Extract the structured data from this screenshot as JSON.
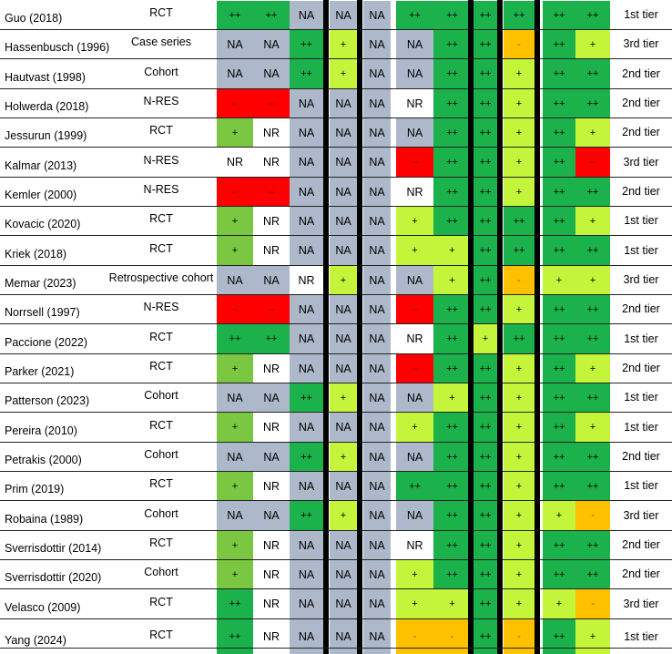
{
  "legend": {
    "++": "#1bb14b",
    "+": "#c5f53a",
    "+ light": "#7cc742",
    "-": "#ffc000",
    "--": "#ff0000",
    "NA": "#adb9ca",
    "NR": "#ffffff"
  },
  "rows": [
    {
      "study": "Guo (2018)",
      "design": "RCT",
      "ratings": [
        "++",
        "++",
        "NA",
        "NA",
        "NA",
        "++",
        "++",
        "++",
        "++",
        "++",
        "++"
      ],
      "tier": "1st tier"
    },
    {
      "study": "Hassenbusch (1996)",
      "design": "Case series",
      "ratings": [
        "NA",
        "NA",
        "++",
        "+",
        "NA",
        "NA",
        "++",
        "++",
        "-",
        "++",
        "+"
      ],
      "tier": "3rd tier"
    },
    {
      "study": "Hautvast (1998)",
      "design": "Cohort",
      "ratings": [
        "NA",
        "NA",
        "++",
        "+",
        "NA",
        "NA",
        "++",
        "++",
        "+",
        "++",
        "++"
      ],
      "tier": "2nd tier"
    },
    {
      "study": "Holwerda (2018)",
      "design": "N-RES",
      "ratings": [
        "--",
        "--",
        "NA",
        "NA",
        "NA",
        "NR",
        "++",
        "++",
        "+",
        "++",
        "++"
      ],
      "tier": "2nd tier"
    },
    {
      "study": "Jessurun (1999)",
      "design": "RCT",
      "ratings": [
        "+",
        "NR",
        "NA",
        "NA",
        "NA",
        "NA",
        "++",
        "++",
        "+",
        "++",
        "+"
      ],
      "tier": "2nd tier"
    },
    {
      "study": "Kalmar (2013)",
      "design": "N-RES",
      "ratings": [
        "NR",
        "NR",
        "NA",
        "NA",
        "NA",
        "--",
        "++",
        "++",
        "+",
        "++",
        "--"
      ],
      "tier": "3rd tier"
    },
    {
      "study": "Kemler (2000)",
      "design": "N-RES",
      "ratings": [
        "--",
        "--",
        "NA",
        "NA",
        "NA",
        "NR",
        "++",
        "++",
        "+",
        "++",
        "++"
      ],
      "tier": "2nd tier"
    },
    {
      "study": "Kovacic (2020)",
      "design": "RCT",
      "ratings": [
        "+",
        "NR",
        "NA",
        "NA",
        "NA",
        "+",
        "++",
        "++",
        "++",
        "++",
        "+"
      ],
      "tier": "1st tier"
    },
    {
      "study": "Kriek (2018)",
      "design": "RCT",
      "ratings": [
        "+",
        "NR",
        "NA",
        "NA",
        "NA",
        "+",
        "+",
        "++",
        "++",
        "++",
        "++"
      ],
      "tier": "1st tier"
    },
    {
      "study": "Memar (2023)",
      "design": "Retrospective cohort",
      "ratings": [
        "NA",
        "NA",
        "NR",
        "+",
        "NA",
        "NA",
        "+",
        "++",
        "-",
        "+",
        "+"
      ],
      "tier": "3rd tier"
    },
    {
      "study": "Norrsell (1997)",
      "design": "N-RES",
      "ratings": [
        "--",
        "--",
        "NA",
        "NA",
        "NA",
        "--",
        "++",
        "++",
        "+",
        "++",
        "++"
      ],
      "tier": "2nd tier"
    },
    {
      "study": "Paccione (2022)",
      "design": "RCT",
      "ratings": [
        "++",
        "++",
        "NA",
        "NA",
        "NA",
        "NR",
        "++",
        "+",
        "++",
        "++",
        "++"
      ],
      "tier": "1st tier"
    },
    {
      "study": "Parker (2021)",
      "design": "RCT",
      "ratings": [
        "+",
        "NR",
        "NA",
        "NA",
        "NA",
        "--",
        "++",
        "++",
        "+",
        "++",
        "+"
      ],
      "tier": "2nd tier"
    },
    {
      "study": "Patterson (2023)",
      "design": "Cohort",
      "ratings": [
        "NA",
        "NA",
        "++",
        "+",
        "NA",
        "NA",
        "+",
        "++",
        "+",
        "++",
        "++"
      ],
      "tier": "1st tier"
    },
    {
      "study": "Pereira (2010)",
      "design": "RCT",
      "ratings": [
        "+",
        "NR",
        "NA",
        "NA",
        "NA",
        "+",
        "++",
        "++",
        "+",
        "++",
        "+"
      ],
      "tier": "1st tier"
    },
    {
      "study": "Petrakis (2000)",
      "design": "Cohort",
      "ratings": [
        "NA",
        "NA",
        "++",
        "+",
        "NA",
        "NA",
        "++",
        "++",
        "+",
        "++",
        "++"
      ],
      "tier": "2nd tier"
    },
    {
      "study": "Prim (2019)",
      "design": "RCT",
      "ratings": [
        "+",
        "NR",
        "NA",
        "NA",
        "NA",
        "++",
        "++",
        "++",
        "+",
        "++",
        "++"
      ],
      "tier": "1st tier"
    },
    {
      "study": "Robaina (1989)",
      "design": "Cohort",
      "ratings": [
        "NA",
        "NA",
        "++",
        "+",
        "NA",
        "NA",
        "++",
        "++",
        "+",
        "+",
        "-"
      ],
      "tier": "3rd tier"
    },
    {
      "study": "Sverrisdottir (2014)",
      "design": "RCT",
      "ratings": [
        "+",
        "NR",
        "NA",
        "NA",
        "NA",
        "NR",
        "++",
        "++",
        "+",
        "++",
        "++"
      ],
      "tier": "2nd tier"
    },
    {
      "study": "Sverrisdottir (2020)",
      "design": "Cohort",
      "ratings": [
        "+",
        "NR",
        "NA",
        "NA",
        "NA",
        "+",
        "++",
        "++",
        "+",
        "++",
        "++"
      ],
      "tier": "2nd tier"
    },
    {
      "study": "Velasco (2009)",
      "design": "RCT",
      "ratings": [
        "++",
        "NR",
        "NA",
        "NA",
        "NA",
        "+",
        "+",
        "++",
        "+",
        "+",
        "-"
      ],
      "tier": "3rd tier"
    },
    {
      "study": "Yang (2024)",
      "design": "RCT",
      "ratings": [
        "++",
        "NR",
        "NA",
        "NA",
        "NA",
        "-",
        "-",
        "++",
        "-",
        "++",
        "+"
      ],
      "tier": "1st tier"
    }
  ]
}
